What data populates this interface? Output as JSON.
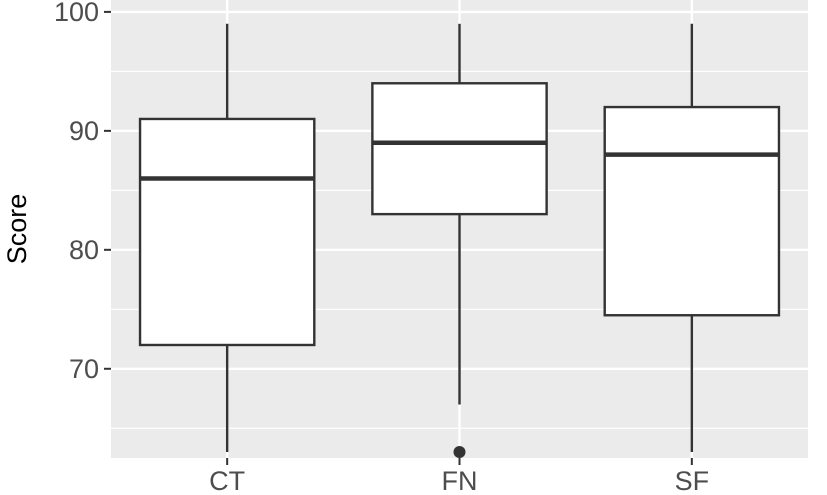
{
  "chart_data": {
    "type": "boxplot",
    "title": "",
    "xlabel": "",
    "ylabel": "Score",
    "ylim": [
      62.5,
      101
    ],
    "yticks": [
      70,
      80,
      90,
      100
    ],
    "grid": true,
    "legend": "none",
    "colors": {
      "panel": "#ebebeb",
      "grid_major": "#ffffff",
      "box_fill": "#ffffff",
      "box_stroke": "#333333",
      "outlier": "#333333"
    },
    "categories": [
      "CT",
      "FN",
      "SF"
    ],
    "boxes": [
      {
        "category": "CT",
        "whisker_low": 63,
        "q1": 72,
        "median": 86,
        "q3": 91,
        "whisker_high": 99,
        "outliers": []
      },
      {
        "category": "FN",
        "whisker_low": 67,
        "q1": 83,
        "median": 89,
        "q3": 94,
        "whisker_high": 99,
        "outliers": [
          63
        ]
      },
      {
        "category": "SF",
        "whisker_low": 63,
        "q1": 74.5,
        "median": 88,
        "q3": 92,
        "whisker_high": 99,
        "outliers": []
      }
    ]
  }
}
